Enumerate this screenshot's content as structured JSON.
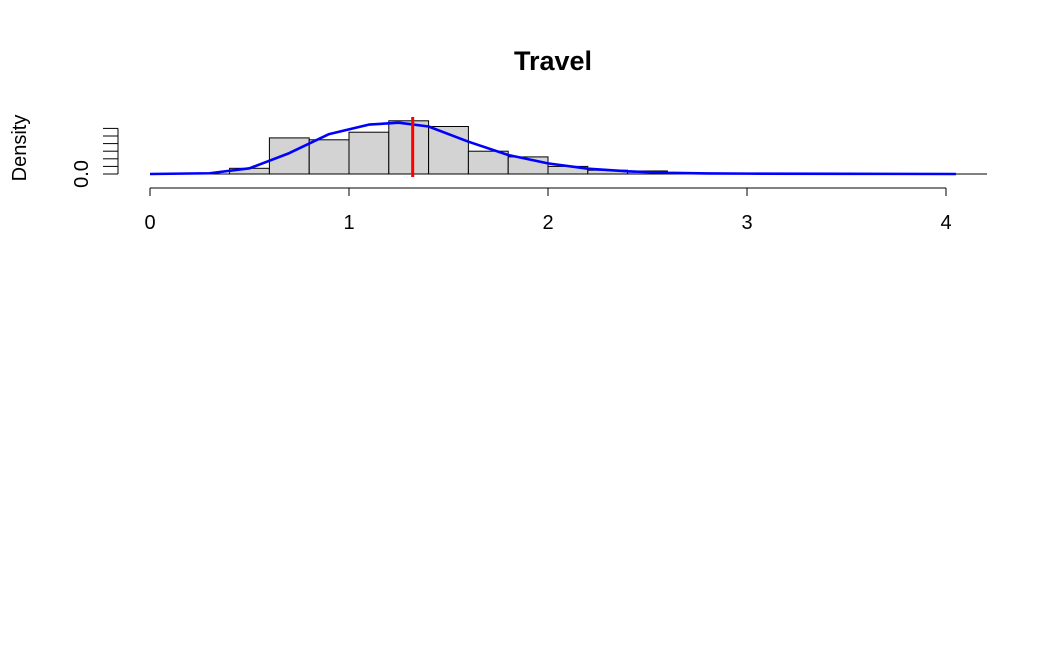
{
  "chart_data": {
    "type": "bar",
    "title": "Travel",
    "xlabel": "",
    "ylabel": "Density",
    "xlim": [
      0,
      4.2
    ],
    "ylim": [
      0,
      1.3
    ],
    "x_ticks": [
      0,
      1,
      2,
      3,
      4
    ],
    "y_ticks": [
      0.0,
      0.2,
      0.4,
      0.6,
      0.8,
      1.0,
      1.2
    ],
    "y_tick_labels_shown": [
      "0.0"
    ],
    "bins": [
      {
        "x0": 0.4,
        "x1": 0.6,
        "density": 0.15
      },
      {
        "x0": 0.6,
        "x1": 0.8,
        "density": 0.95
      },
      {
        "x0": 0.8,
        "x1": 1.0,
        "density": 0.9
      },
      {
        "x0": 1.0,
        "x1": 1.2,
        "density": 1.1
      },
      {
        "x0": 1.2,
        "x1": 1.4,
        "density": 1.4
      },
      {
        "x0": 1.4,
        "x1": 1.6,
        "density": 1.25
      },
      {
        "x0": 1.6,
        "x1": 1.8,
        "density": 0.6
      },
      {
        "x0": 1.8,
        "x1": 2.0,
        "density": 0.45
      },
      {
        "x0": 2.0,
        "x1": 2.2,
        "density": 0.2
      },
      {
        "x0": 2.2,
        "x1": 2.4,
        "density": 0.1
      },
      {
        "x0": 2.4,
        "x1": 2.6,
        "density": 0.08
      }
    ],
    "density_curve": {
      "x": [
        0.0,
        0.3,
        0.5,
        0.7,
        0.9,
        1.1,
        1.25,
        1.4,
        1.6,
        1.8,
        2.0,
        2.2,
        2.4,
        2.6,
        2.8,
        3.0,
        3.5,
        4.05
      ],
      "y": [
        0.0,
        0.02,
        0.15,
        0.55,
        1.05,
        1.3,
        1.35,
        1.25,
        0.85,
        0.5,
        0.28,
        0.14,
        0.07,
        0.03,
        0.015,
        0.01,
        0.005,
        0.0
      ]
    },
    "mean_line": {
      "x": 1.32
    },
    "colors": {
      "bar_fill": "#d3d3d3",
      "bar_stroke": "#000000",
      "curve": "#0000ff",
      "mean_line": "#ff0000"
    },
    "grid": false
  }
}
